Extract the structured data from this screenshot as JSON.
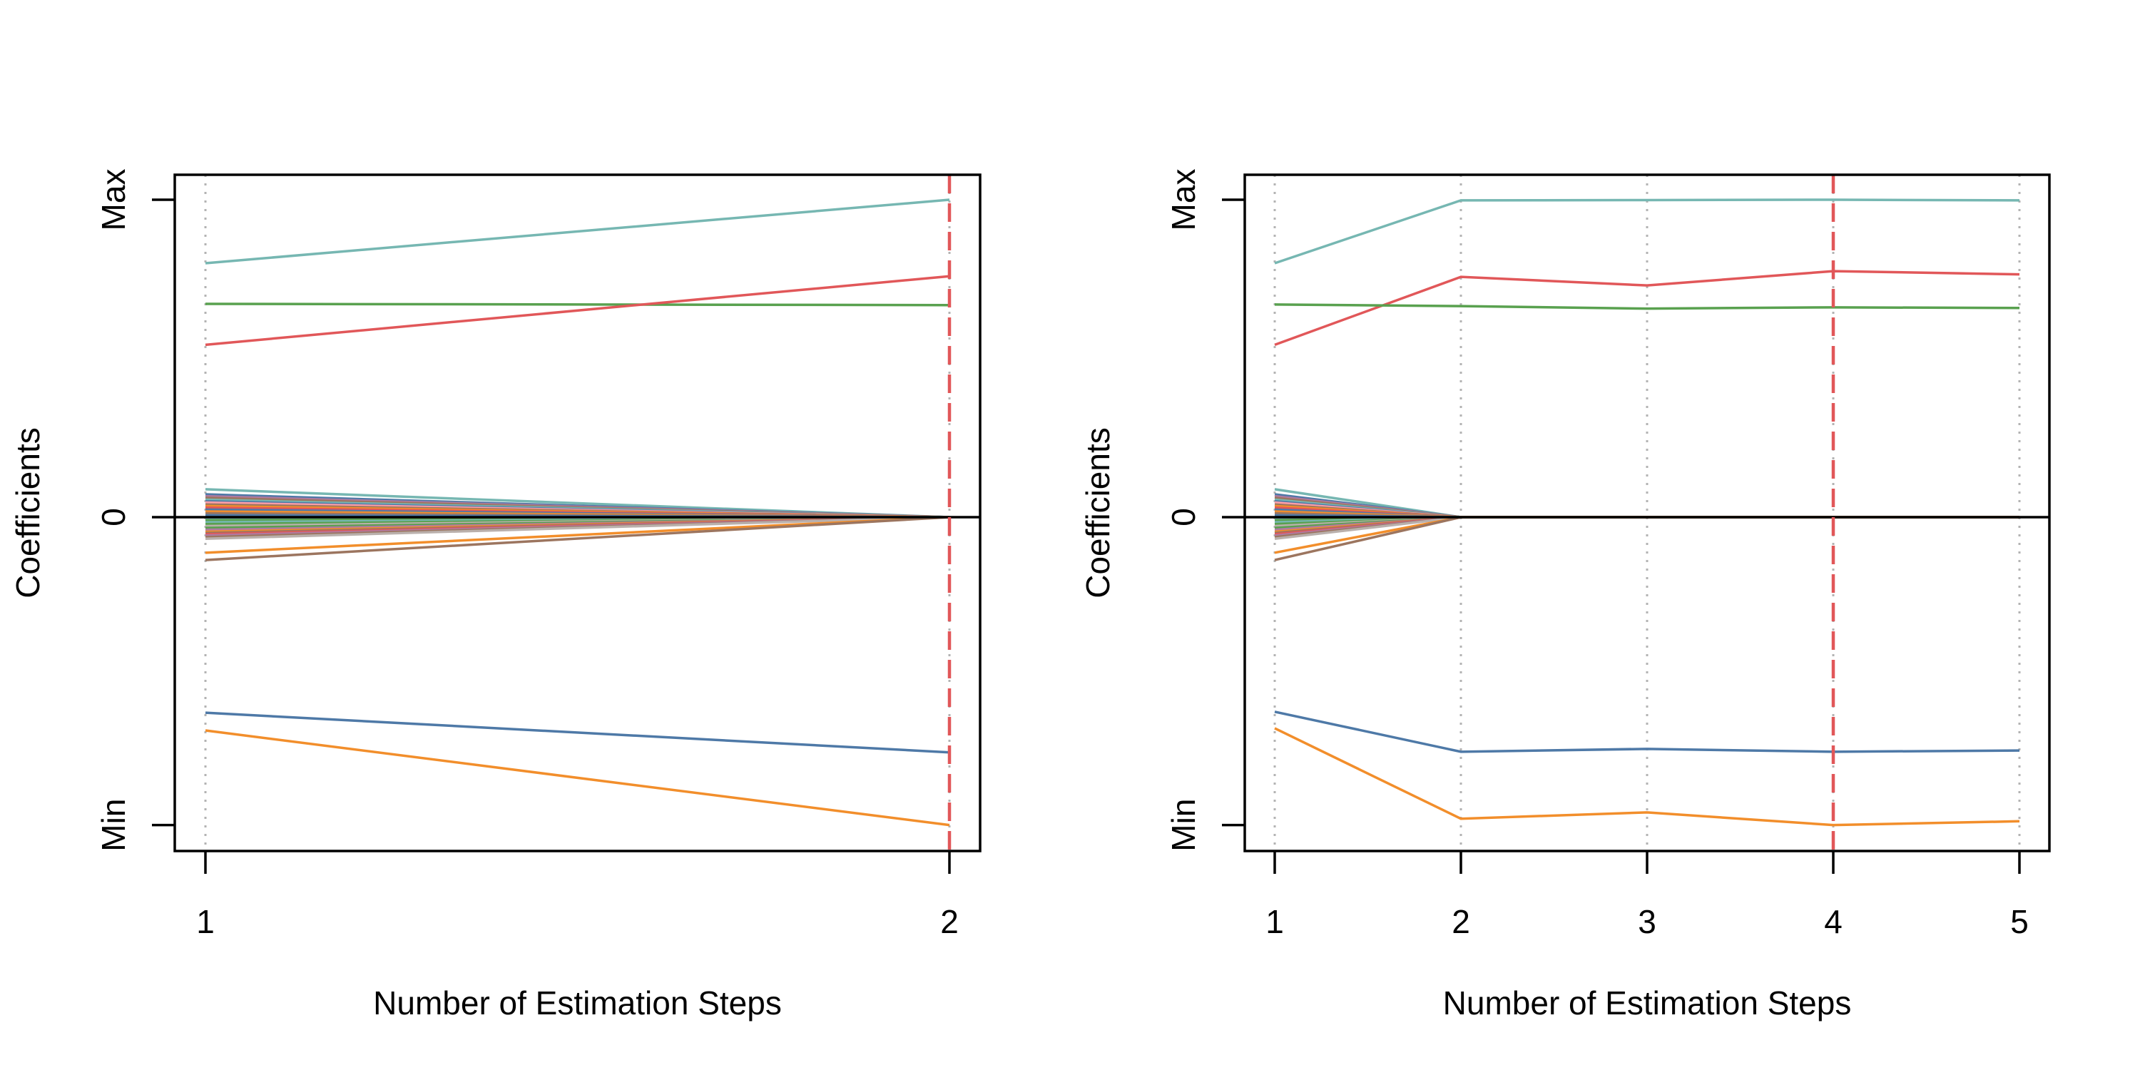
{
  "chart_data": [
    {
      "type": "line",
      "xlabel": "Number of Estimation Steps",
      "ylabel": "Coefficients",
      "x": [
        1,
        2
      ],
      "x_tick_labels": [
        "1",
        "2"
      ],
      "y_ticks": [
        {
          "value": 1.0,
          "label": "Max"
        },
        {
          "value": 0,
          "label": "0"
        },
        {
          "value": -0.97,
          "label": "Min"
        }
      ],
      "ylim": [
        -1.05,
        1.08
      ],
      "grid": "dotted gray vertical lines at each step",
      "zero_line": true,
      "selected_step": 2,
      "selected_step_color": "#E15759",
      "series": [
        {
          "color": "#76B7B2",
          "values": [
            0.8,
            1.0
          ]
        },
        {
          "color": "#59A14F",
          "values": [
            0.672,
            0.668
          ]
        },
        {
          "color": "#E15759",
          "values": [
            0.543,
            0.759
          ]
        },
        {
          "color": "#4E79A7",
          "values": [
            -0.616,
            -0.741
          ]
        },
        {
          "color": "#F28E2B",
          "values": [
            -0.672,
            -0.97
          ]
        }
      ],
      "small_series_start_values": [
        0.088,
        0.072,
        0.066,
        0.061,
        0.055,
        0.05,
        0.046,
        0.04,
        0.035,
        0.03,
        0.024,
        0.018,
        0.012,
        0.006,
        -0.004,
        -0.01,
        -0.016,
        -0.022,
        -0.028,
        -0.034,
        -0.04,
        -0.046,
        -0.05,
        -0.054,
        -0.058,
        -0.063,
        -0.068,
        -0.112,
        -0.135
      ],
      "small_series_colors": [
        "#76B7B2",
        "#4E79A7",
        "#B07AA1",
        "#9C755F",
        "#76B7B2",
        "#4E79A7",
        "#FF9DA7",
        "#9C755F",
        "#F28E2B",
        "#E15759",
        "#4E79A7",
        "#F28E2B",
        "#9C755F",
        "#4E79A7",
        "#76B7B2",
        "#59A14F",
        "#76B7B2",
        "#59A14F",
        "#BAB0AC",
        "#59A14F",
        "#B07AA1",
        "#F28E2B",
        "#9C755F",
        "#E15759",
        "#B07AA1",
        "#9C755F",
        "#BAB0AC",
        "#F28E2B",
        "#9C755F"
      ]
    },
    {
      "type": "line",
      "xlabel": "Number of Estimation Steps",
      "ylabel": "Coefficients",
      "x": [
        1,
        2,
        3,
        4,
        5
      ],
      "x_tick_labels": [
        "1",
        "2",
        "3",
        "4",
        "5"
      ],
      "y_ticks": [
        {
          "value": 1.0,
          "label": "Max"
        },
        {
          "value": 0,
          "label": "0"
        },
        {
          "value": -0.97,
          "label": "Min"
        }
      ],
      "ylim": [
        -1.05,
        1.08
      ],
      "grid": "dotted gray vertical lines at each step",
      "zero_line": true,
      "selected_step": 4,
      "selected_step_color": "#E15759",
      "series": [
        {
          "color": "#76B7B2",
          "values": [
            0.8,
            0.998,
            0.999,
            1.0,
            0.998
          ]
        },
        {
          "color": "#E15759",
          "values": [
            0.543,
            0.757,
            0.73,
            0.775,
            0.765
          ]
        },
        {
          "color": "#59A14F",
          "values": [
            0.67,
            0.665,
            0.657,
            0.661,
            0.659
          ]
        },
        {
          "color": "#4E79A7",
          "values": [
            -0.613,
            -0.739,
            -0.73,
            -0.739,
            -0.735
          ]
        },
        {
          "color": "#F28E2B",
          "values": [
            -0.665,
            -0.95,
            -0.93,
            -0.97,
            -0.958
          ]
        }
      ],
      "small_series_start_values": [
        0.088,
        0.072,
        0.066,
        0.061,
        0.055,
        0.05,
        0.046,
        0.04,
        0.035,
        0.03,
        0.024,
        0.018,
        0.012,
        0.006,
        -0.004,
        -0.01,
        -0.016,
        -0.022,
        -0.028,
        -0.034,
        -0.04,
        -0.046,
        -0.05,
        -0.054,
        -0.058,
        -0.063,
        -0.068,
        -0.112,
        -0.135
      ],
      "small_series_colors": [
        "#76B7B2",
        "#4E79A7",
        "#B07AA1",
        "#9C755F",
        "#76B7B2",
        "#4E79A7",
        "#FF9DA7",
        "#9C755F",
        "#F28E2B",
        "#E15759",
        "#4E79A7",
        "#F28E2B",
        "#9C755F",
        "#4E79A7",
        "#76B7B2",
        "#59A14F",
        "#76B7B2",
        "#59A14F",
        "#BAB0AC",
        "#59A14F",
        "#B07AA1",
        "#F28E2B",
        "#9C755F",
        "#E15759",
        "#B07AA1",
        "#9C755F",
        "#BAB0AC",
        "#F28E2B",
        "#9C755F"
      ]
    }
  ]
}
